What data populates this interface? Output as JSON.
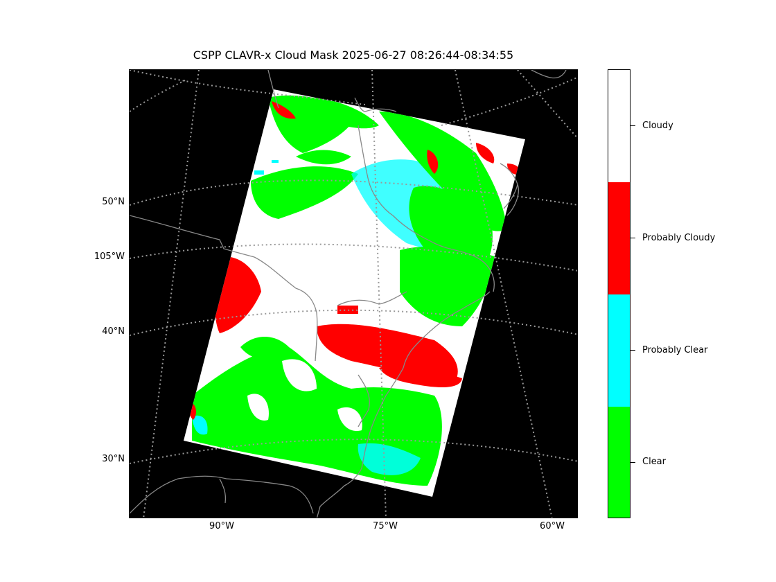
{
  "title": "CSPP CLAVR-x Cloud Mask 2025-06-27 08:26:44-08:34:55",
  "latitude_labels": [
    "50°N",
    "105°W",
    "40°N",
    "30°N"
  ],
  "longitude_labels": [
    "90°W",
    "75°W",
    "60°W"
  ],
  "colorbar": {
    "categories": [
      {
        "label": "Cloudy",
        "color": "#ffffff"
      },
      {
        "label": "Probably Cloudy",
        "color": "#ff0000"
      },
      {
        "label": "Probably Clear",
        "color": "#00ffff"
      },
      {
        "label": "Clear",
        "color": "#00ff00"
      }
    ]
  },
  "colors": {
    "background": "#000000",
    "coastline": "#888888",
    "graticule": "#999999"
  }
}
